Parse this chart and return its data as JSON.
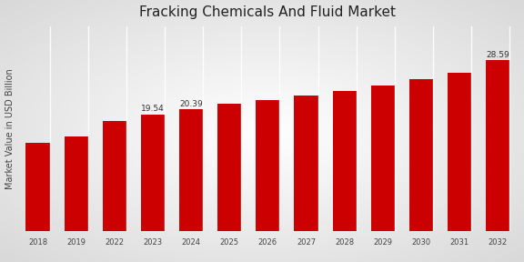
{
  "title": "Fracking Chemicals And Fluid Market",
  "ylabel": "Market Value in USD Billion",
  "categories": [
    "2018",
    "2019",
    "2022",
    "2023",
    "2024",
    "2025",
    "2026",
    "2027",
    "2028",
    "2029",
    "2030",
    "2031",
    "2032"
  ],
  "values": [
    14.8,
    15.9,
    18.5,
    19.54,
    20.39,
    21.3,
    21.9,
    22.7,
    23.5,
    24.4,
    25.4,
    26.5,
    28.59
  ],
  "bar_color": "#cc0000",
  "background_color_center": "#ffffff",
  "background_color_edge": "#cccccc",
  "bottom_bar_color": "#cc0000",
  "annotated": {
    "2023": "19.54",
    "2024": "20.39",
    "2032": "28.59"
  },
  "title_fontsize": 11,
  "label_fontsize": 6.5,
  "tick_fontsize": 6,
  "ylabel_fontsize": 7
}
